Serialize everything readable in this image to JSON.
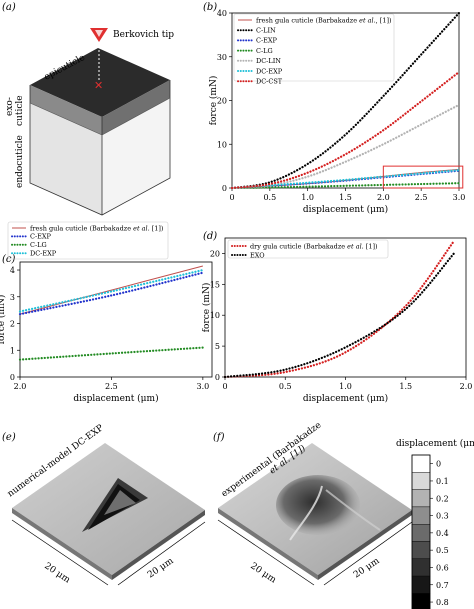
{
  "panels": {
    "a": {
      "label": "(a)",
      "tip_label": "Berkovich tip",
      "layers": [
        "epicuticle",
        "exo-",
        "cuticle",
        "endocuticle"
      ],
      "colors": {
        "top": "#2b2b2b",
        "side_dark": "#3a3a3a",
        "exo": "#808080",
        "endo": "#e6e6e6",
        "endo_side": "#f3f3f3",
        "tip": "#e03030"
      }
    },
    "b": {
      "label": "(b)"
    },
    "c": {
      "label": "(c)"
    },
    "d": {
      "label": "(d)"
    },
    "e": {
      "label": "(e)",
      "title": "numerical-model DC-EXP",
      "dim_x": "20 μm",
      "dim_y": "20 μm"
    },
    "f": {
      "label": "(f)",
      "title_line1": "experimental (Barbakadze",
      "title_line2": "et al. [1])",
      "dim_x": "20 μm",
      "dim_y": "20 μm"
    }
  },
  "colorbar": {
    "title": "displacement (μm)",
    "ticks": [
      "0",
      "0.1",
      "0.2",
      "0.3",
      "0.4",
      "0.5",
      "0.6",
      "0.7",
      "0.8"
    ],
    "colors": [
      "#ffffff",
      "#d9d9d9",
      "#b3b3b3",
      "#8e8e8e",
      "#6b6b6b",
      "#4d4d4d",
      "#303030",
      "#171717",
      "#000000"
    ]
  },
  "chart_data": [
    {
      "id": "b",
      "type": "line",
      "xlabel": "displacement (μm)",
      "ylabel": "force (mN)",
      "xlim": [
        0,
        3.0
      ],
      "ylim": [
        0,
        40
      ],
      "xticks": [
        0,
        0.5,
        1.0,
        1.5,
        2.0,
        2.5,
        3.0
      ],
      "xtick_labels": [
        "0",
        "0.5",
        "1.0",
        "1.5",
        "2.0",
        "2.5",
        "3.0"
      ],
      "yticks": [
        0,
        10,
        20,
        30,
        40
      ],
      "ytick_labels": [
        "0",
        "10",
        "20",
        "30",
        "40"
      ],
      "legend_position": "top-left",
      "zoom_box": {
        "x": [
          2.0,
          3.05
        ],
        "y": [
          0,
          5
        ]
      },
      "series": [
        {
          "name": "fresh gula cuticle (Barbakadze",
          "name_italic": "et al.",
          "name_suffix": ", [1])",
          "color": "#c0504d",
          "style": "solid",
          "x": [
            0,
            0.5,
            1.0,
            1.5,
            2.0,
            2.5,
            3.0
          ],
          "y": [
            0,
            0.45,
            1.0,
            1.75,
            2.65,
            3.55,
            4.25
          ]
        },
        {
          "name": "C-LIN",
          "color": "#000000",
          "style": "dotted",
          "x": [
            0,
            0.5,
            1.0,
            1.5,
            2.0,
            2.5,
            3.0
          ],
          "y": [
            0,
            1.3,
            5.5,
            12.2,
            21.0,
            30.5,
            40.0
          ]
        },
        {
          "name": "C-EXP",
          "color": "#2233cc",
          "style": "dotted",
          "x": [
            0,
            0.5,
            1.0,
            1.5,
            2.0,
            2.5,
            3.0
          ],
          "y": [
            0,
            0.5,
            1.05,
            1.7,
            2.45,
            3.2,
            3.95
          ]
        },
        {
          "name": "C-LG",
          "color": "#228b22",
          "style": "dotted",
          "x": [
            0,
            0.5,
            1.0,
            1.5,
            2.0,
            2.5,
            3.0
          ],
          "y": [
            0,
            0.12,
            0.3,
            0.5,
            0.7,
            0.9,
            1.1
          ]
        },
        {
          "name": "DC-LIN",
          "color": "#b3b3b3",
          "style": "dotted",
          "x": [
            0,
            0.5,
            1.0,
            1.5,
            2.0,
            2.5,
            3.0
          ],
          "y": [
            0,
            0.6,
            2.6,
            6.0,
            10.0,
            14.5,
            19.0
          ]
        },
        {
          "name": "DC-EXP",
          "color": "#20c0d8",
          "style": "dotted",
          "x": [
            0,
            0.5,
            1.0,
            1.5,
            2.0,
            2.5,
            3.0
          ],
          "y": [
            0,
            0.6,
            1.2,
            1.85,
            2.6,
            3.35,
            4.1
          ]
        },
        {
          "name": "DC-CST",
          "color": "#d42020",
          "style": "dotted",
          "x": [
            0,
            0.5,
            1.0,
            1.5,
            2.0,
            2.5,
            3.0
          ],
          "y": [
            0,
            0.9,
            3.5,
            7.7,
            13.2,
            19.8,
            26.5
          ]
        }
      ]
    },
    {
      "id": "c",
      "type": "line",
      "xlabel": "displacement (μm)",
      "ylabel": "force (mN)",
      "xlim": [
        2.0,
        3.05
      ],
      "ylim": [
        0,
        4.3
      ],
      "xticks": [
        2.0,
        2.5,
        3.0
      ],
      "xtick_labels": [
        "2.0",
        "2.5",
        "3.0"
      ],
      "yticks": [
        0,
        1,
        2,
        3,
        4
      ],
      "ytick_labels": [
        "0",
        "1",
        "2",
        "3",
        "4"
      ],
      "legend_position": "top-left-outside",
      "series": [
        {
          "name": "fresh gula cuticle (Barbakadze",
          "name_italic": "et al.",
          "name_suffix": " [1])",
          "color": "#c0504d",
          "style": "solid",
          "x": [
            2.0,
            2.5,
            3.0
          ],
          "y": [
            2.35,
            3.25,
            4.15
          ]
        },
        {
          "name": "C-EXP",
          "color": "#2233cc",
          "style": "dotted",
          "x": [
            2.0,
            2.5,
            3.0
          ],
          "y": [
            2.35,
            3.05,
            3.9
          ]
        },
        {
          "name": "C-LG",
          "color": "#228b22",
          "style": "dotted",
          "x": [
            2.0,
            2.5,
            3.0
          ],
          "y": [
            0.65,
            0.88,
            1.1
          ]
        },
        {
          "name": "DC-EXP",
          "color": "#20c0d8",
          "style": "dotted",
          "x": [
            2.0,
            2.5,
            3.0
          ],
          "y": [
            2.45,
            3.2,
            4.0
          ]
        }
      ]
    },
    {
      "id": "d",
      "type": "line",
      "xlabel": "displacement (μm)",
      "ylabel": "force (mN)",
      "xlim": [
        0,
        2.0
      ],
      "ylim": [
        0,
        22.5
      ],
      "xticks": [
        0,
        0.5,
        1.0,
        1.5,
        2.0
      ],
      "xtick_labels": [
        "0",
        "0.5",
        "1.0",
        "1.5",
        "2.0"
      ],
      "yticks": [
        0,
        5,
        10,
        15,
        20
      ],
      "ytick_labels": [
        "0",
        "5",
        "10",
        "15",
        "20"
      ],
      "legend_position": "top-left",
      "series": [
        {
          "name": "dry gula cuticle (Barbakadze",
          "name_italic": "et al.",
          "name_suffix": " [1])",
          "color": "#d42020",
          "style": "dotted",
          "x": [
            0,
            0.5,
            1.0,
            1.5,
            1.9
          ],
          "y": [
            0,
            0.8,
            4.0,
            11.5,
            22.0
          ]
        },
        {
          "name": "EXO",
          "color": "#000000",
          "style": "dotted",
          "x": [
            0,
            0.5,
            1.0,
            1.5,
            1.9
          ],
          "y": [
            0,
            1.2,
            4.8,
            11.0,
            20.0
          ]
        }
      ]
    }
  ]
}
